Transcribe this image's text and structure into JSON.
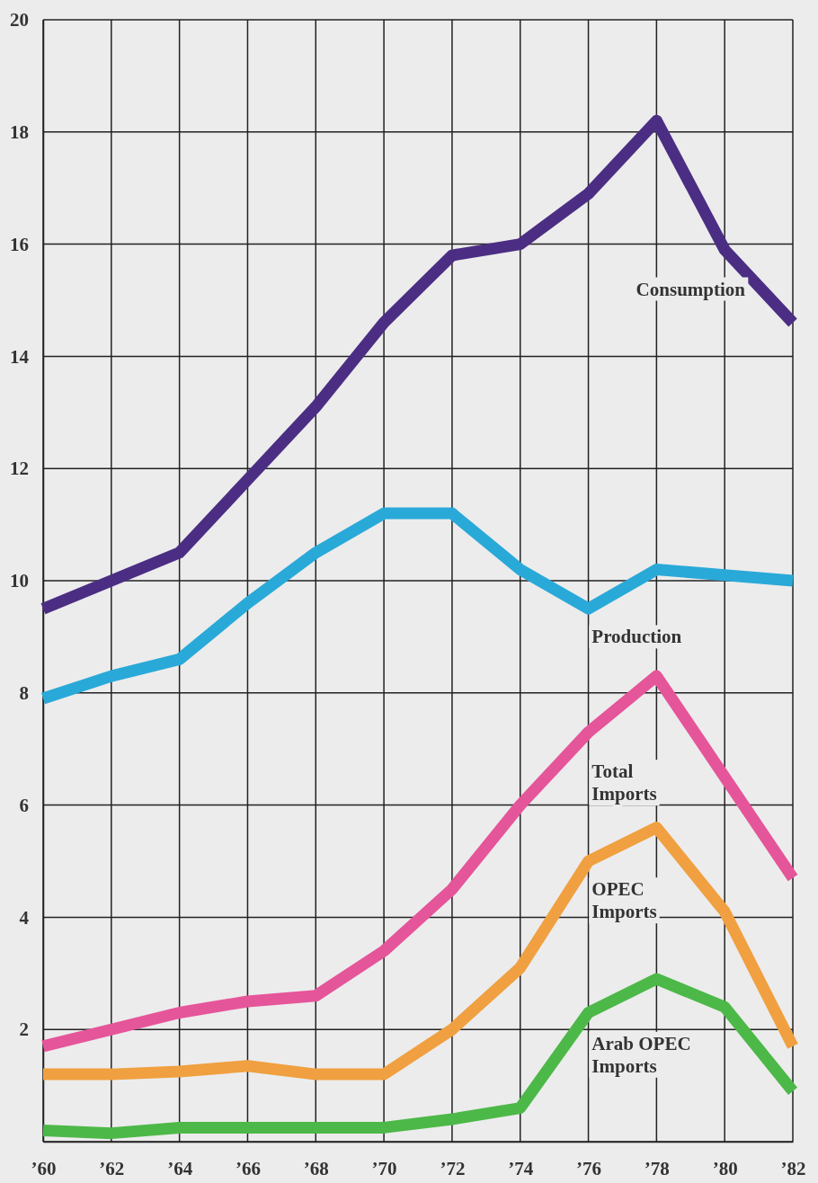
{
  "chart_data": {
    "type": "line",
    "x": [
      1960,
      1962,
      1964,
      1966,
      1968,
      1970,
      1972,
      1974,
      1976,
      1978,
      1980,
      1982
    ],
    "xlim": [
      1960,
      1982
    ],
    "xticks": [
      {
        "value": 1960,
        "label": "’60"
      },
      {
        "value": 1962,
        "label": "’62"
      },
      {
        "value": 1964,
        "label": "’64"
      },
      {
        "value": 1966,
        "label": "’66"
      },
      {
        "value": 1968,
        "label": "’68"
      },
      {
        "value": 1970,
        "label": "’70"
      },
      {
        "value": 1972,
        "label": "’72"
      },
      {
        "value": 1974,
        "label": "’74"
      },
      {
        "value": 1976,
        "label": "’76"
      },
      {
        "value": 1978,
        "label": "’78"
      },
      {
        "value": 1980,
        "label": "’80"
      },
      {
        "value": 1982,
        "label": "’82"
      }
    ],
    "ylim": [
      0,
      20
    ],
    "yticks": [
      {
        "value": 0,
        "label": null
      },
      2,
      4,
      6,
      8,
      10,
      12,
      14,
      16,
      18,
      20
    ],
    "grid": true,
    "marker": "none",
    "line_style": "solid",
    "series": [
      {
        "name": "Consumption",
        "color": "#4b2e83",
        "values": [
          9.5,
          10.0,
          10.5,
          11.8,
          13.1,
          14.6,
          15.8,
          16.0,
          16.9,
          18.2,
          15.9,
          14.6
        ]
      },
      {
        "name": "Production",
        "color": "#29a9d8",
        "values": [
          7.9,
          8.3,
          8.6,
          9.6,
          10.5,
          11.2,
          11.2,
          10.2,
          9.5,
          10.2,
          10.1,
          10.0
        ]
      },
      {
        "name": "Total Imports",
        "color": "#e5559a",
        "values": [
          1.7,
          2.0,
          2.3,
          2.5,
          2.6,
          3.4,
          4.5,
          6.0,
          7.3,
          8.3,
          6.5,
          4.7
        ]
      },
      {
        "name": "OPEC Imports",
        "color": "#f0a040",
        "values": [
          1.2,
          1.2,
          1.25,
          1.35,
          1.2,
          1.2,
          2.0,
          3.1,
          5.0,
          5.6,
          4.1,
          1.7
        ]
      },
      {
        "name": "Arab OPEC Imports",
        "color": "#4cb848",
        "values": [
          0.2,
          0.15,
          0.25,
          0.25,
          0.25,
          0.25,
          0.4,
          0.6,
          2.3,
          2.9,
          2.4,
          0.9
        ]
      }
    ]
  }
}
